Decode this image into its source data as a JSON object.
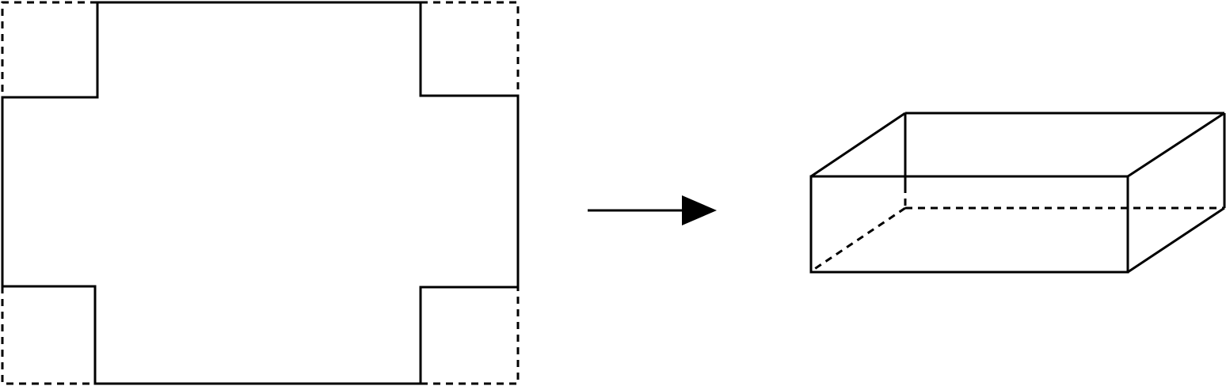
{
  "diagram": {
    "description_labels": [],
    "stroke_color": "#000000",
    "background_color": "#ffffff",
    "parts": [
      {
        "id": "net",
        "kind": "flat net with four square corners cut out (dashed outline shows removed corners)"
      },
      {
        "id": "arrow",
        "kind": "arrow pointing right"
      },
      {
        "id": "box",
        "kind": "open-top rectangular box (hidden edges dashed)"
      }
    ]
  }
}
